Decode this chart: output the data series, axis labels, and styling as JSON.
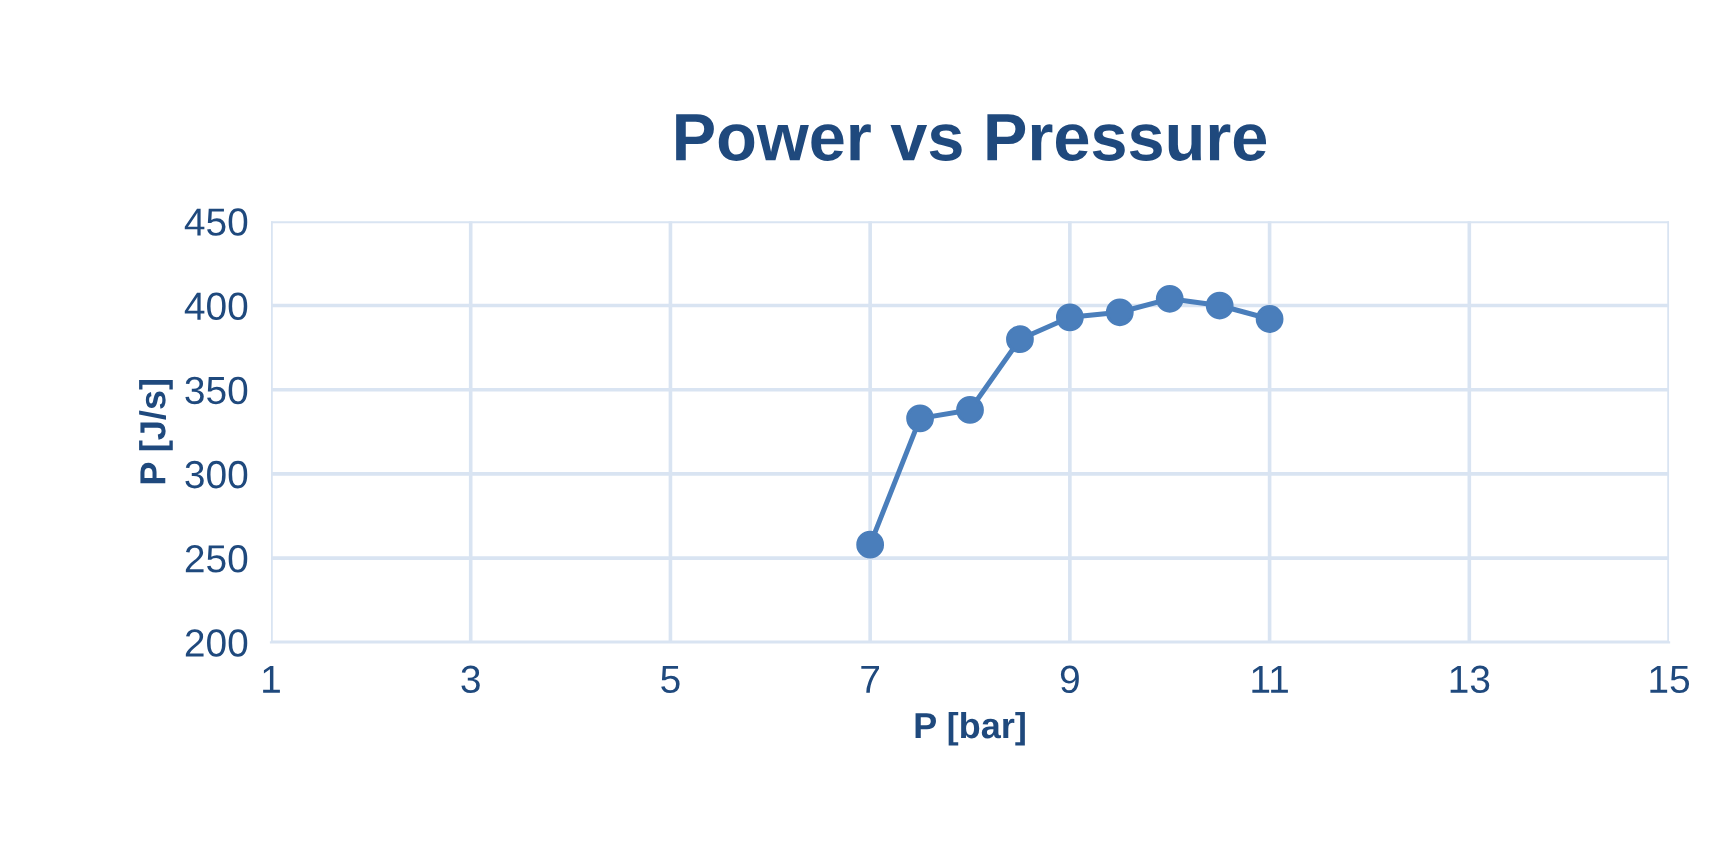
{
  "chart_data": {
    "type": "line",
    "title": "Power vs Pressure",
    "xlabel": "P [bar]",
    "ylabel": "P [J/s]",
    "x": [
      7,
      7.5,
      8,
      8.5,
      9,
      9.5,
      10,
      10.5,
      11
    ],
    "series": [
      {
        "color": "#4a7ebb",
        "values": [
          258,
          333,
          338,
          380,
          393,
          396,
          404,
          400,
          392
        ]
      }
    ],
    "xlim": [
      1,
      15
    ],
    "xticks": [
      1,
      3,
      5,
      7,
      9,
      11,
      13,
      15
    ],
    "ylim": [
      200,
      450
    ],
    "yticks": [
      200,
      250,
      300,
      350,
      400,
      450
    ],
    "grid": true,
    "marker": "circle",
    "line_style": "solid",
    "legend": false
  }
}
